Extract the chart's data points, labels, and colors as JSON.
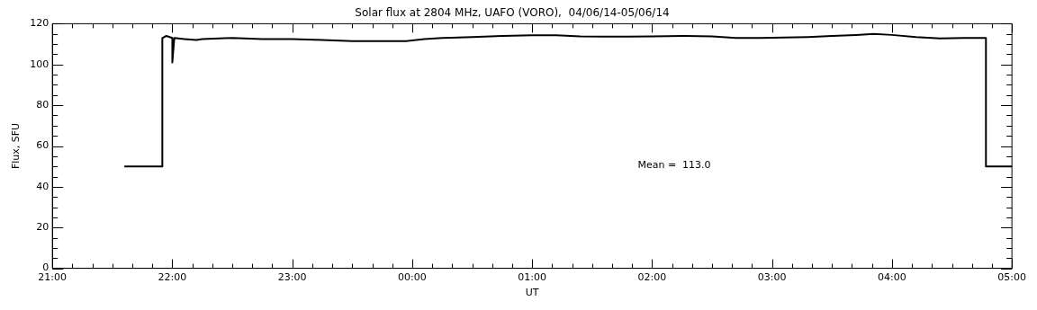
{
  "chart_data": {
    "type": "line",
    "title": "Solar flux at 2804 MHz, UAFO (VORO),  04/06/14-05/06/14",
    "xlabel": "UT",
    "ylabel": "Flux, SFU",
    "annotations": [
      "Mean =  113.0"
    ],
    "x": [
      "--06-04T21:36",
      "--06-04T21:55",
      "--06-04T21:55",
      "--06-04T21:57",
      "--06-04T22:00",
      "--06-04T22:00",
      "--06-04T22:01",
      "--06-04T22:06",
      "--06-04T22:12",
      "--06-04T22:15",
      "--06-04T22:30",
      "--06-04T22:45",
      "--06-04T23:00",
      "--06-04T23:15",
      "--06-04T23:30",
      "--06-04T23:45",
      "--06-04T23:57",
      "--06-05T00:06",
      "--06-05T00:15",
      "--06-05T00:30",
      "--06-05T00:45",
      "--06-05T01:00",
      "--06-05T01:12",
      "--06-05T01:24",
      "--06-05T01:36",
      "--06-05T01:48",
      "--06-05T02:00",
      "--06-05T02:15",
      "--06-05T02:30",
      "--06-05T02:42",
      "--06-05T02:54",
      "--06-05T03:06",
      "--06-05T03:18",
      "--06-05T03:30",
      "--06-05T03:42",
      "--06-05T03:51",
      "--06-05T04:00",
      "--06-05T04:12",
      "--06-05T04:24",
      "--06-05T04:36",
      "--06-05T04:47",
      "--06-05T04:47",
      "--06-05T05:00"
    ],
    "series": [
      {
        "color": "#000000",
        "values": [
          50,
          50,
          113,
          114,
          113,
          101,
          113,
          112.5,
          112,
          112.5,
          113,
          112.5,
          112.5,
          112,
          111.5,
          111.5,
          111.5,
          112.5,
          113,
          113.5,
          114,
          114.3,
          114.3,
          113.8,
          113.7,
          113.7,
          113.8,
          114,
          113.8,
          113,
          113,
          113.2,
          113.5,
          114,
          114.5,
          115,
          114.5,
          113.5,
          112.8,
          113,
          113,
          50,
          50
        ]
      }
    ],
    "xlim": [
      "--06-04T21:00",
      "--06-05T05:00"
    ],
    "xticks": [
      {
        "value": "--06-04T21:00",
        "label": "21:00"
      },
      {
        "value": "--06-04T21:10",
        "label": null
      },
      {
        "value": "--06-04T21:20",
        "label": null
      },
      {
        "value": "--06-04T21:30",
        "label": null
      },
      {
        "value": "--06-04T21:40",
        "label": null
      },
      {
        "value": "--06-04T21:50",
        "label": null
      },
      {
        "value": "--06-04T22:00",
        "label": "22:00"
      },
      {
        "value": "--06-04T22:10",
        "label": null
      },
      {
        "value": "--06-04T22:20",
        "label": null
      },
      {
        "value": "--06-04T22:30",
        "label": null
      },
      {
        "value": "--06-04T22:40",
        "label": null
      },
      {
        "value": "--06-04T22:50",
        "label": null
      },
      {
        "value": "--06-04T23:00",
        "label": "23:00"
      },
      {
        "value": "--06-04T23:10",
        "label": null
      },
      {
        "value": "--06-04T23:20",
        "label": null
      },
      {
        "value": "--06-04T23:30",
        "label": null
      },
      {
        "value": "--06-04T23:40",
        "label": null
      },
      {
        "value": "--06-04T23:50",
        "label": null
      },
      {
        "value": "--06-05T00:00",
        "label": "00:00"
      },
      {
        "value": "--06-05T00:10",
        "label": null
      },
      {
        "value": "--06-05T00:20",
        "label": null
      },
      {
        "value": "--06-05T00:30",
        "label": null
      },
      {
        "value": "--06-05T00:40",
        "label": null
      },
      {
        "value": "--06-05T00:50",
        "label": null
      },
      {
        "value": "--06-05T01:00",
        "label": "01:00"
      },
      {
        "value": "--06-05T01:10",
        "label": null
      },
      {
        "value": "--06-05T01:20",
        "label": null
      },
      {
        "value": "--06-05T01:30",
        "label": null
      },
      {
        "value": "--06-05T01:40",
        "label": null
      },
      {
        "value": "--06-05T01:50",
        "label": null
      },
      {
        "value": "--06-05T02:00",
        "label": "02:00"
      },
      {
        "value": "--06-05T02:10",
        "label": null
      },
      {
        "value": "--06-05T02:20",
        "label": null
      },
      {
        "value": "--06-05T02:30",
        "label": null
      },
      {
        "value": "--06-05T02:40",
        "label": null
      },
      {
        "value": "--06-05T02:50",
        "label": null
      },
      {
        "value": "--06-05T03:00",
        "label": "03:00"
      },
      {
        "value": "--06-05T03:10",
        "label": null
      },
      {
        "value": "--06-05T03:20",
        "label": null
      },
      {
        "value": "--06-05T03:30",
        "label": null
      },
      {
        "value": "--06-05T03:40",
        "label": null
      },
      {
        "value": "--06-05T03:50",
        "label": null
      },
      {
        "value": "--06-05T04:00",
        "label": "04:00"
      },
      {
        "value": "--06-05T04:10",
        "label": null
      },
      {
        "value": "--06-05T04:20",
        "label": null
      },
      {
        "value": "--06-05T04:30",
        "label": null
      },
      {
        "value": "--06-05T04:40",
        "label": null
      },
      {
        "value": "--06-05T04:50",
        "label": null
      },
      {
        "value": "--06-05T05:00",
        "label": "05:00"
      }
    ],
    "ylim": [
      0,
      120
    ],
    "yticks": [
      0,
      {
        "value": 5,
        "label": null
      },
      {
        "value": 10,
        "label": null
      },
      {
        "value": 15,
        "label": null
      },
      20,
      {
        "value": 25,
        "label": null
      },
      {
        "value": 30,
        "label": null
      },
      {
        "value": 35,
        "label": null
      },
      40,
      {
        "value": 45,
        "label": null
      },
      {
        "value": 50,
        "label": null
      },
      {
        "value": 55,
        "label": null
      },
      60,
      {
        "value": 65,
        "label": null
      },
      {
        "value": 70,
        "label": null
      },
      {
        "value": 75,
        "label": null
      },
      80,
      {
        "value": 85,
        "label": null
      },
      {
        "value": 90,
        "label": null
      },
      {
        "value": 95,
        "label": null
      },
      100,
      {
        "value": 105,
        "label": null
      },
      {
        "value": 110,
        "label": null
      },
      {
        "value": 115,
        "label": null
      },
      120
    ],
    "grid": false,
    "legend": false,
    "marker": "none",
    "line_style": "solid"
  }
}
